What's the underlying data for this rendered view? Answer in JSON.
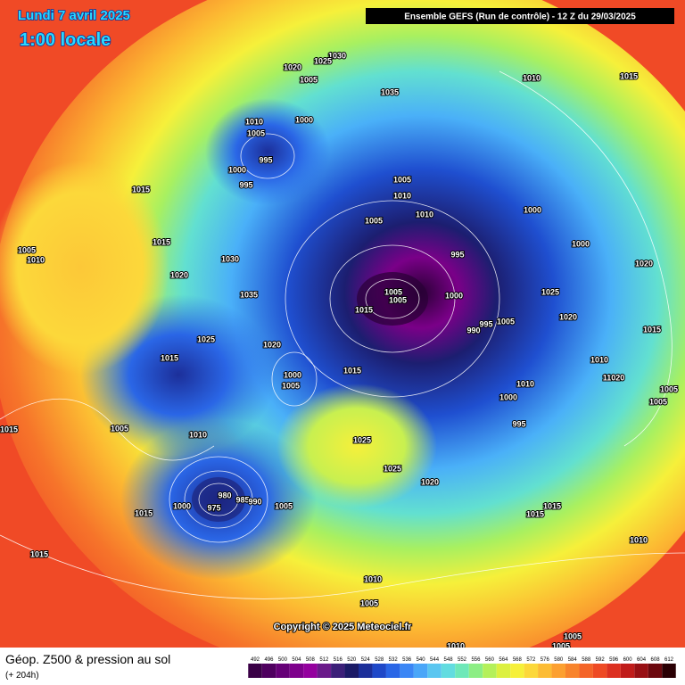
{
  "header": {
    "date": "Lundi 7 avril 2025",
    "time": "1:00 locale",
    "run": "Ensemble GEFS  (Run de contrôle)  -  12 Z du 29/03/2025"
  },
  "copyright": "Copyright © 2025 Meteociel.fr",
  "footer": {
    "title": "Géop. Z500 & pression au sol",
    "lead": "(+ 204h)"
  },
  "colorbar": {
    "labels": [
      492,
      496,
      500,
      504,
      508,
      512,
      516,
      520,
      524,
      528,
      532,
      536,
      540,
      544,
      548,
      552,
      556,
      560,
      564,
      568,
      572,
      576,
      580,
      584,
      588,
      592,
      596,
      600,
      604,
      608,
      612
    ],
    "colors": [
      "#3a0046",
      "#4f005f",
      "#660077",
      "#7e008c",
      "#94009e",
      "#6a1a8a",
      "#3b1f78",
      "#1b1a66",
      "#1c2f9a",
      "#1f48c8",
      "#2a66e6",
      "#3b86f5",
      "#4aa6f8",
      "#5ac6f0",
      "#62dce0",
      "#6ee8b8",
      "#8cee84",
      "#b4f05a",
      "#dcf040",
      "#f6f03a",
      "#fcd83a",
      "#fcbc34",
      "#fca030",
      "#f8842c",
      "#f46428",
      "#ee4a24",
      "#dc3020",
      "#c01c1a",
      "#981014",
      "#6c080e",
      "#2a0004"
    ]
  },
  "isobars": [
    "1030",
    "1025",
    "1020",
    "1005",
    "1035",
    "1010",
    "1015",
    "1010",
    "1000",
    "1005",
    "995",
    "1000",
    "995",
    "1015",
    "1005",
    "1010",
    "1010",
    "1005",
    "1000",
    "1015",
    "1000",
    "1005",
    "1010",
    "1030",
    "995",
    "1020",
    "1020",
    "1035",
    "1005",
    "1005",
    "1000",
    "1025",
    "1015",
    "1020",
    "995",
    "990",
    "1005",
    "1015",
    "1025",
    "1020",
    "1015",
    "1010",
    "1000",
    "1005",
    "1015",
    "1010",
    "11020",
    "1000",
    "1005",
    "1005",
    "995",
    "1005",
    "1015",
    "1010",
    "1025",
    "1025",
    "1020",
    "980",
    "985",
    "990",
    "1000",
    "975",
    "1005",
    "1015",
    "1015",
    "1015",
    "1010",
    "1015",
    "1010",
    "1005",
    "1005",
    "1010",
    "1005"
  ]
}
